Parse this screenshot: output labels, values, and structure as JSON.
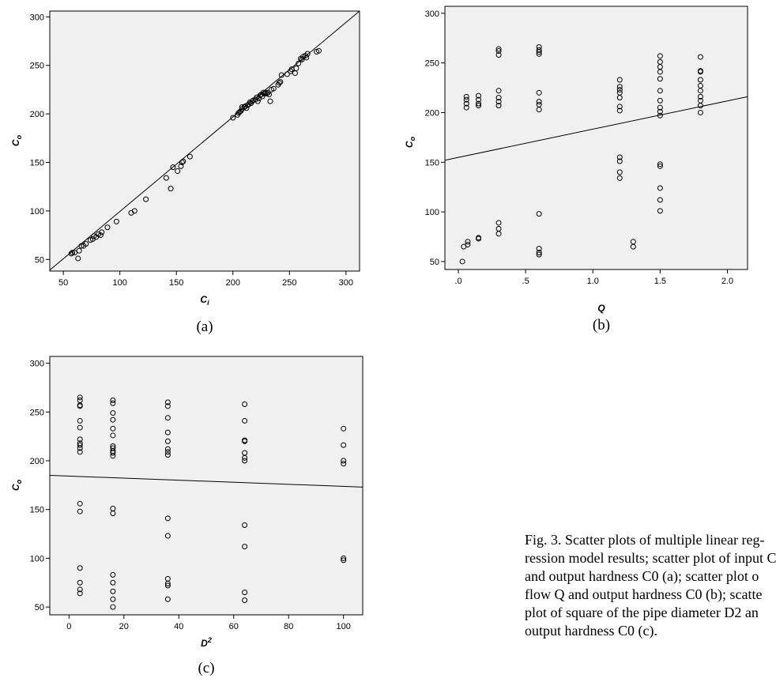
{
  "caption_lines": [
    "Fig. 3. Scatter plots of multiple linear reg-",
    "ression model results; scatter plot of input C",
    "and output hardness C0 (a); scatter plot o",
    "flow Q and output hardness C0 (b); scatte",
    "plot of square of the pipe diameter D2 an",
    "output hardness C0 (c)."
  ],
  "chart_data": [
    {
      "type": "scatter",
      "panel_label": "(a)",
      "xlabel": "Ci",
      "ylabel": "Co",
      "xlim": [
        38,
        312
      ],
      "ylim": [
        38,
        306
      ],
      "xticks": [
        50,
        100,
        150,
        200,
        250,
        300
      ],
      "yticks": [
        50,
        100,
        150,
        200,
        250,
        300
      ],
      "xtick_labels": [
        "50",
        "100",
        "150",
        "200",
        "250",
        "300"
      ],
      "ytick_labels": [
        "50",
        "100",
        "150",
        "200",
        "250",
        "300"
      ],
      "fit_line": [
        [
          38,
          39
        ],
        [
          312,
          306
        ]
      ],
      "points": [
        [
          57,
          56
        ],
        [
          58,
          57
        ],
        [
          60,
          57
        ],
        [
          63,
          51
        ],
        [
          64,
          59
        ],
        [
          66,
          64
        ],
        [
          68,
          64
        ],
        [
          70,
          66
        ],
        [
          74,
          70
        ],
        [
          76,
          71
        ],
        [
          77,
          74
        ],
        [
          79,
          73
        ],
        [
          81,
          76
        ],
        [
          83,
          75
        ],
        [
          84,
          78
        ],
        [
          89,
          83
        ],
        [
          97,
          89
        ],
        [
          110,
          98
        ],
        [
          113,
          100
        ],
        [
          123,
          112
        ],
        [
          141,
          134
        ],
        [
          145,
          123
        ],
        [
          147,
          145
        ],
        [
          151,
          141
        ],
        [
          154,
          146
        ],
        [
          155,
          150
        ],
        [
          156,
          151
        ],
        [
          162,
          156
        ],
        [
          200,
          196
        ],
        [
          204,
          199
        ],
        [
          205,
          201
        ],
        [
          206,
          202
        ],
        [
          207,
          203
        ],
        [
          208,
          205
        ],
        [
          208,
          207
        ],
        [
          210,
          207
        ],
        [
          211,
          208
        ],
        [
          212,
          206
        ],
        [
          213,
          209
        ],
        [
          214,
          210
        ],
        [
          215,
          212
        ],
        [
          216,
          211
        ],
        [
          217,
          213
        ],
        [
          218,
          214
        ],
        [
          220,
          215
        ],
        [
          221,
          217
        ],
        [
          222,
          213
        ],
        [
          223,
          216
        ],
        [
          224,
          219
        ],
        [
          225,
          220
        ],
        [
          226,
          218
        ],
        [
          227,
          222
        ],
        [
          228,
          221
        ],
        [
          229,
          222
        ],
        [
          230,
          221
        ],
        [
          231,
          222
        ],
        [
          232,
          220
        ],
        [
          233,
          213
        ],
        [
          234,
          225
        ],
        [
          236,
          226
        ],
        [
          240,
          230
        ],
        [
          241,
          232
        ],
        [
          242,
          233
        ],
        [
          243,
          240
        ],
        [
          248,
          241
        ],
        [
          251,
          244
        ],
        [
          252,
          246
        ],
        [
          255,
          242
        ],
        [
          256,
          247
        ],
        [
          258,
          252
        ],
        [
          260,
          257
        ],
        [
          261,
          256
        ],
        [
          262,
          259
        ],
        [
          264,
          260
        ],
        [
          265,
          258
        ],
        [
          266,
          262
        ],
        [
          274,
          264
        ],
        [
          276,
          265
        ]
      ]
    },
    {
      "type": "scatter",
      "panel_label": "(b)",
      "xlabel": "Q",
      "ylabel": "Co",
      "xlim": [
        -0.1,
        2.15
      ],
      "ylim": [
        42,
        307
      ],
      "xticks": [
        0,
        0.5,
        1.0,
        1.5,
        2.0
      ],
      "yticks": [
        50,
        100,
        150,
        200,
        250,
        300
      ],
      "xtick_labels": [
        ".0",
        ".5",
        "1.0",
        "1.5",
        "2.0"
      ],
      "ytick_labels": [
        "50",
        "100",
        "150",
        "200",
        "250",
        "300"
      ],
      "fit_line": [
        [
          -0.1,
          152
        ],
        [
          2.15,
          216
        ]
      ],
      "points": [
        [
          0.03,
          50
        ],
        [
          0.04,
          65
        ],
        [
          0.07,
          67
        ],
        [
          0.07,
          70
        ],
        [
          0.06,
          205
        ],
        [
          0.06,
          209
        ],
        [
          0.06,
          213
        ],
        [
          0.06,
          216
        ],
        [
          0.15,
          73
        ],
        [
          0.15,
          74
        ],
        [
          0.15,
          207
        ],
        [
          0.15,
          209
        ],
        [
          0.15,
          213
        ],
        [
          0.15,
          217
        ],
        [
          0.3,
          78
        ],
        [
          0.3,
          83
        ],
        [
          0.3,
          89
        ],
        [
          0.3,
          207
        ],
        [
          0.3,
          211
        ],
        [
          0.3,
          215
        ],
        [
          0.3,
          222
        ],
        [
          0.3,
          258
        ],
        [
          0.3,
          262
        ],
        [
          0.3,
          264
        ],
        [
          0.6,
          57
        ],
        [
          0.6,
          59
        ],
        [
          0.6,
          63
        ],
        [
          0.6,
          98
        ],
        [
          0.6,
          203
        ],
        [
          0.6,
          208
        ],
        [
          0.6,
          211
        ],
        [
          0.6,
          220
        ],
        [
          0.6,
          259
        ],
        [
          0.6,
          261
        ],
        [
          0.6,
          263
        ],
        [
          0.6,
          266
        ],
        [
          1.2,
          134
        ],
        [
          1.2,
          140
        ],
        [
          1.2,
          151
        ],
        [
          1.2,
          155
        ],
        [
          1.2,
          202
        ],
        [
          1.2,
          206
        ],
        [
          1.2,
          215
        ],
        [
          1.2,
          220
        ],
        [
          1.2,
          223
        ],
        [
          1.2,
          226
        ],
        [
          1.2,
          233
        ],
        [
          1.3,
          65
        ],
        [
          1.3,
          70
        ],
        [
          1.5,
          101
        ],
        [
          1.5,
          112
        ],
        [
          1.5,
          124
        ],
        [
          1.5,
          146
        ],
        [
          1.5,
          148
        ],
        [
          1.5,
          197
        ],
        [
          1.5,
          201
        ],
        [
          1.5,
          205
        ],
        [
          1.5,
          212
        ],
        [
          1.5,
          222
        ],
        [
          1.5,
          234
        ],
        [
          1.5,
          241
        ],
        [
          1.5,
          246
        ],
        [
          1.5,
          251
        ],
        [
          1.5,
          257
        ],
        [
          1.8,
          200
        ],
        [
          1.8,
          207
        ],
        [
          1.8,
          212
        ],
        [
          1.8,
          216
        ],
        [
          1.8,
          222
        ],
        [
          1.8,
          227
        ],
        [
          1.8,
          233
        ],
        [
          1.8,
          241
        ],
        [
          1.8,
          242
        ],
        [
          1.8,
          256
        ]
      ]
    },
    {
      "type": "scatter",
      "panel_label": "(c)",
      "xlabel": "D2",
      "ylabel": "Co",
      "xlim": [
        -7,
        107
      ],
      "ylim": [
        42,
        307
      ],
      "xticks": [
        0,
        20,
        40,
        60,
        80,
        100
      ],
      "yticks": [
        50,
        100,
        150,
        200,
        250,
        300
      ],
      "xtick_labels": [
        "0",
        "20",
        "40",
        "60",
        "80",
        "100"
      ],
      "ytick_labels": [
        "50",
        "100",
        "150",
        "200",
        "250",
        "300"
      ],
      "fit_line": [
        [
          -7,
          185
        ],
        [
          107,
          173
        ]
      ],
      "points": [
        [
          4,
          64
        ],
        [
          4,
          68
        ],
        [
          4,
          75
        ],
        [
          4,
          90
        ],
        [
          4,
          148
        ],
        [
          4,
          156
        ],
        [
          4,
          209
        ],
        [
          4,
          213
        ],
        [
          4,
          216
        ],
        [
          4,
          218
        ],
        [
          4,
          222
        ],
        [
          4,
          234
        ],
        [
          4,
          241
        ],
        [
          4,
          256
        ],
        [
          4,
          257
        ],
        [
          4,
          262
        ],
        [
          4,
          265
        ],
        [
          16,
          50
        ],
        [
          16,
          58
        ],
        [
          16,
          66
        ],
        [
          16,
          75
        ],
        [
          16,
          83
        ],
        [
          16,
          146
        ],
        [
          16,
          151
        ],
        [
          16,
          205
        ],
        [
          16,
          208
        ],
        [
          16,
          210
        ],
        [
          16,
          213
        ],
        [
          16,
          215
        ],
        [
          16,
          226
        ],
        [
          16,
          233
        ],
        [
          16,
          242
        ],
        [
          16,
          249
        ],
        [
          16,
          259
        ],
        [
          16,
          262
        ],
        [
          36,
          58
        ],
        [
          36,
          72
        ],
        [
          36,
          74
        ],
        [
          36,
          79
        ],
        [
          36,
          123
        ],
        [
          36,
          141
        ],
        [
          36,
          206
        ],
        [
          36,
          209
        ],
        [
          36,
          212
        ],
        [
          36,
          220
        ],
        [
          36,
          229
        ],
        [
          36,
          244
        ],
        [
          36,
          256
        ],
        [
          36,
          260
        ],
        [
          64,
          57
        ],
        [
          64,
          65
        ],
        [
          64,
          112
        ],
        [
          64,
          134
        ],
        [
          64,
          200
        ],
        [
          64,
          203
        ],
        [
          64,
          208
        ],
        [
          64,
          220
        ],
        [
          64,
          221
        ],
        [
          64,
          241
        ],
        [
          64,
          258
        ],
        [
          100,
          98
        ],
        [
          100,
          100
        ],
        [
          100,
          197
        ],
        [
          100,
          200
        ],
        [
          100,
          216
        ],
        [
          100,
          233
        ]
      ]
    }
  ]
}
